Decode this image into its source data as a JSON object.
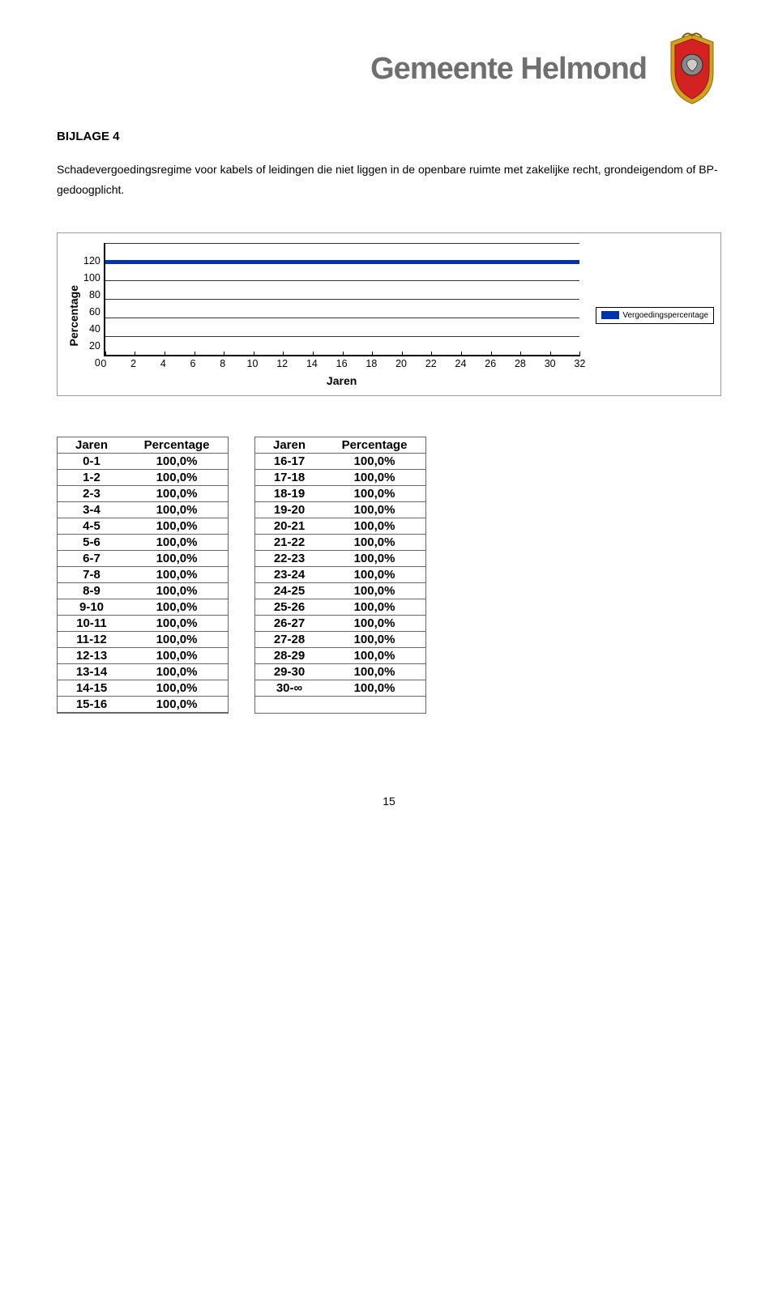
{
  "header": {
    "org_name": "Gemeente Helmond"
  },
  "section_label": "BIJLAGE 4",
  "description": "Schadevergoedingsregime voor kabels of leidingen die niet liggen in de openbare ruimte met zakelijke recht, grondeigendom of BP-gedoogplicht.",
  "chart": {
    "type": "line",
    "ylabel": "Percentage",
    "xlabel": "Jaren",
    "legend_label": "Vergoedingspercentage",
    "ylim": [
      0,
      120
    ],
    "ytick_step": 20,
    "yticks": [
      "120",
      "100",
      "80",
      "60",
      "40",
      "20",
      "0"
    ],
    "xlim": [
      0,
      32
    ],
    "xtick_step": 2,
    "xticks": [
      "0",
      "2",
      "4",
      "6",
      "8",
      "10",
      "12",
      "14",
      "16",
      "18",
      "20",
      "22",
      "24",
      "26",
      "28",
      "30",
      "32"
    ],
    "data_value": 100,
    "line_color": "#0033aa",
    "grid_color": "#333333",
    "background_color": "#ffffff"
  },
  "table_headers": {
    "col1": "Jaren",
    "col2": "Percentage"
  },
  "table1": [
    {
      "j": "0-1",
      "p": "100,0%"
    },
    {
      "j": "1-2",
      "p": "100,0%"
    },
    {
      "j": "2-3",
      "p": "100,0%"
    },
    {
      "j": "3-4",
      "p": "100,0%"
    },
    {
      "j": "4-5",
      "p": "100,0%"
    },
    {
      "j": "5-6",
      "p": "100,0%"
    },
    {
      "j": "6-7",
      "p": "100,0%"
    },
    {
      "j": "7-8",
      "p": "100,0%"
    },
    {
      "j": "8-9",
      "p": "100,0%"
    },
    {
      "j": "9-10",
      "p": "100,0%"
    },
    {
      "j": "10-11",
      "p": "100,0%"
    },
    {
      "j": "11-12",
      "p": "100,0%"
    },
    {
      "j": "12-13",
      "p": "100,0%"
    },
    {
      "j": "13-14",
      "p": "100,0%"
    },
    {
      "j": "14-15",
      "p": "100,0%"
    },
    {
      "j": "15-16",
      "p": "100,0%"
    }
  ],
  "table2": [
    {
      "j": "16-17",
      "p": "100,0%"
    },
    {
      "j": "17-18",
      "p": "100,0%"
    },
    {
      "j": "18-19",
      "p": "100,0%"
    },
    {
      "j": "19-20",
      "p": "100,0%"
    },
    {
      "j": "20-21",
      "p": "100,0%"
    },
    {
      "j": "21-22",
      "p": "100,0%"
    },
    {
      "j": "22-23",
      "p": "100,0%"
    },
    {
      "j": "23-24",
      "p": "100,0%"
    },
    {
      "j": "24-25",
      "p": "100,0%"
    },
    {
      "j": "25-26",
      "p": "100,0%"
    },
    {
      "j": "26-27",
      "p": "100,0%"
    },
    {
      "j": "27-28",
      "p": "100,0%"
    },
    {
      "j": "28-29",
      "p": "100,0%"
    },
    {
      "j": "29-30",
      "p": "100,0%"
    },
    {
      "j": "30-∞",
      "p": "100,0%"
    }
  ],
  "page_number": "15"
}
